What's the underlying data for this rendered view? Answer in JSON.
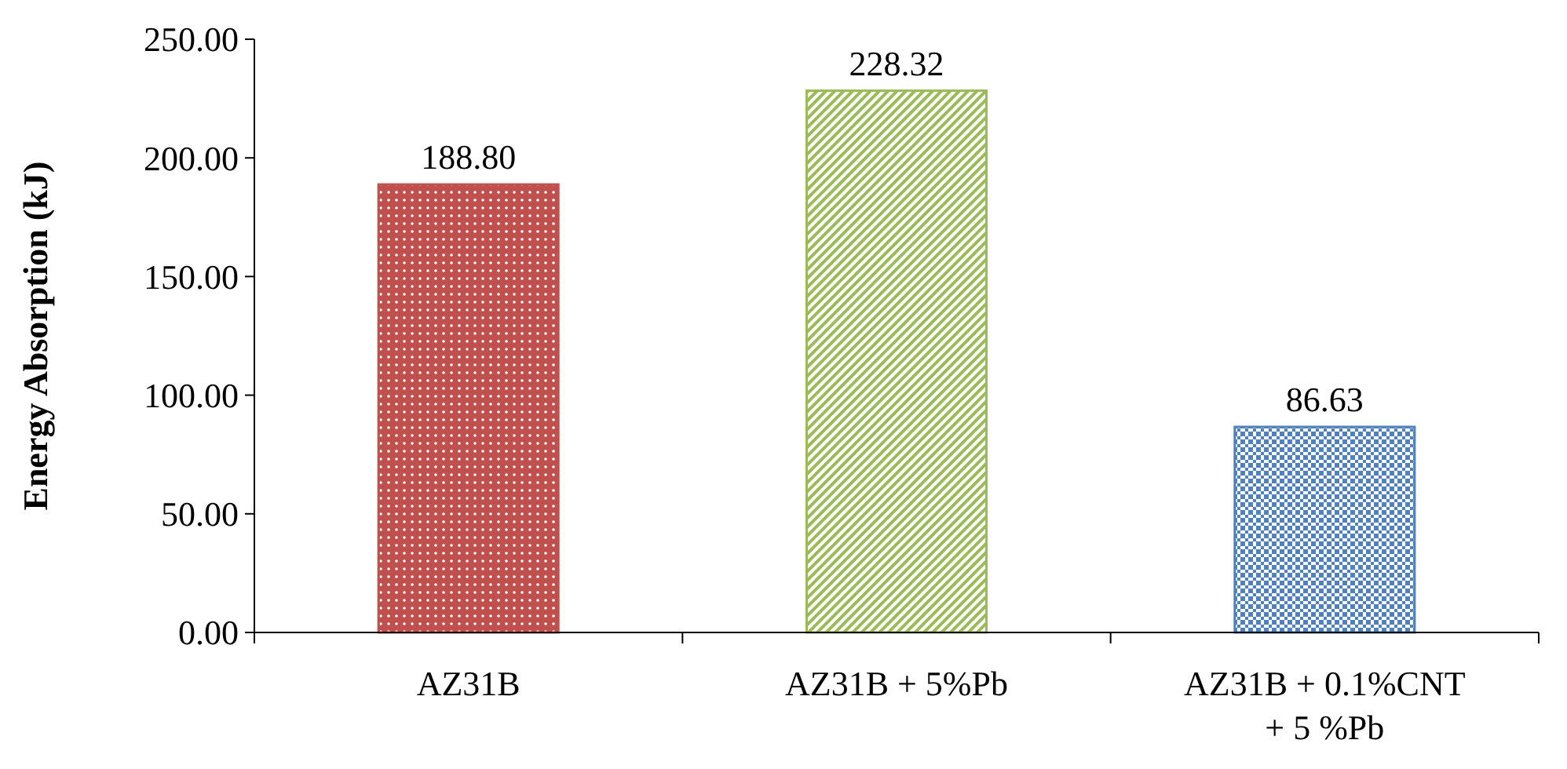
{
  "chart_data": {
    "type": "bar",
    "ylabel": "Energy Absorption (kJ)",
    "categories": [
      "AZ31B",
      "AZ31B + 5%Pb",
      "AZ31B + 0.1%CNT + 5 %Pb"
    ],
    "values": [
      188.8,
      228.32,
      86.63
    ],
    "colors": [
      "#c0504d",
      "#9bbb59",
      "#4f81bd"
    ],
    "value_labels": [
      "188.80",
      "228.32",
      "86.63"
    ],
    "ylim": [
      0,
      250
    ],
    "yticks": [
      {
        "value": 0,
        "label": "0.00"
      },
      {
        "value": 50,
        "label": "50.00"
      },
      {
        "value": 100,
        "label": "100.00"
      },
      {
        "value": 150,
        "label": "150.00"
      },
      {
        "value": 200,
        "label": "200.00"
      },
      {
        "value": 250,
        "label": "250.00"
      }
    ],
    "grid": false
  }
}
